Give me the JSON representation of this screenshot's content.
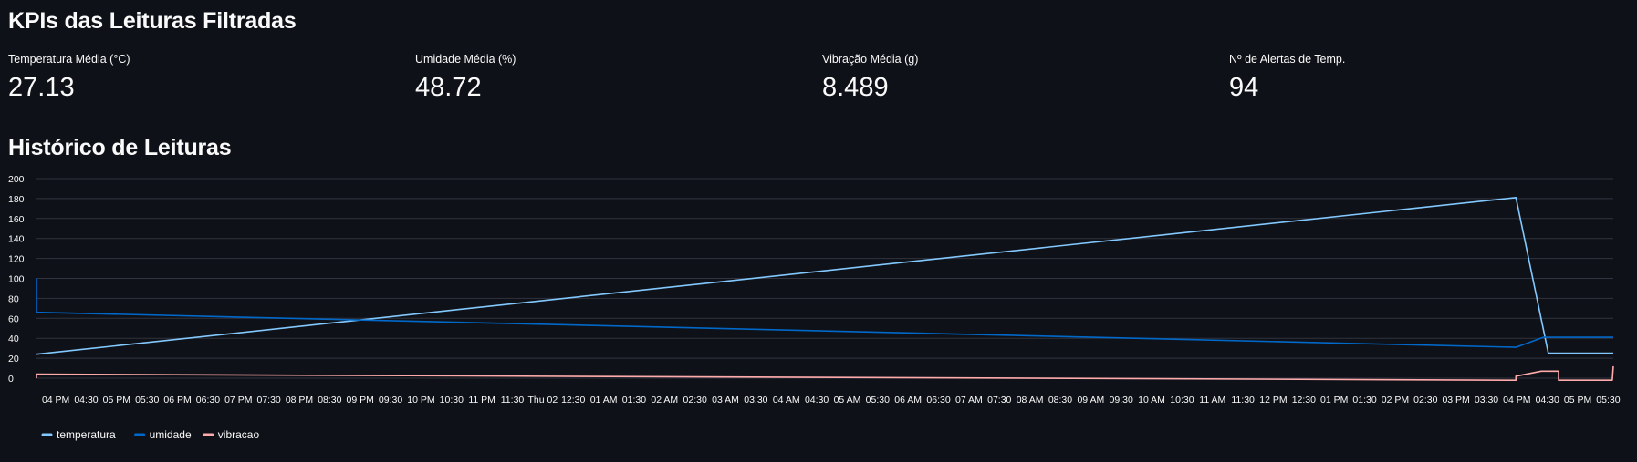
{
  "kpi_section": {
    "title": "KPIs das Leituras Filtradas",
    "metrics": [
      {
        "label": "Temperatura Média (°C)",
        "value": "27.13"
      },
      {
        "label": "Umidade Média (%)",
        "value": "48.72"
      },
      {
        "label": "Vibração Média (g)",
        "value": "8.489"
      },
      {
        "label": "Nº de Alertas de Temp.",
        "value": "94"
      }
    ]
  },
  "history_section": {
    "title": "Histórico de Leituras"
  },
  "chart_data": {
    "type": "line",
    "title": "",
    "xlabel": "",
    "ylabel": "",
    "ylim": [
      0,
      200
    ],
    "grid": true,
    "legend_position": "bottom-left",
    "y_ticks": [
      "0",
      "20",
      "40",
      "60",
      "80",
      "100",
      "120",
      "140",
      "160",
      "180",
      "200"
    ],
    "x_range": [
      "2025-10-01 15:41",
      "2025-10-02 17:35"
    ],
    "x_ticks": [
      {
        "t": "2025-10-01 16:00",
        "label": "04 PM"
      },
      {
        "t": "2025-10-01 16:30",
        "label": "04:30"
      },
      {
        "t": "2025-10-01 17:00",
        "label": "05 PM"
      },
      {
        "t": "2025-10-01 17:30",
        "label": "05:30"
      },
      {
        "t": "2025-10-01 18:00",
        "label": "06 PM"
      },
      {
        "t": "2025-10-01 18:30",
        "label": "06:30"
      },
      {
        "t": "2025-10-01 19:00",
        "label": "07 PM"
      },
      {
        "t": "2025-10-01 19:30",
        "label": "07:30"
      },
      {
        "t": "2025-10-01 20:00",
        "label": "08 PM"
      },
      {
        "t": "2025-10-01 20:30",
        "label": "08:30"
      },
      {
        "t": "2025-10-01 21:00",
        "label": "09 PM"
      },
      {
        "t": "2025-10-01 21:30",
        "label": "09:30"
      },
      {
        "t": "2025-10-01 22:00",
        "label": "10 PM"
      },
      {
        "t": "2025-10-01 22:30",
        "label": "10:30"
      },
      {
        "t": "2025-10-01 23:00",
        "label": "11 PM"
      },
      {
        "t": "2025-10-01 23:30",
        "label": "11:30"
      },
      {
        "t": "2025-10-02 00:00",
        "label": "Thu 02"
      },
      {
        "t": "2025-10-02 00:30",
        "label": "12:30"
      },
      {
        "t": "2025-10-02 01:00",
        "label": "01 AM"
      },
      {
        "t": "2025-10-02 01:30",
        "label": "01:30"
      },
      {
        "t": "2025-10-02 02:00",
        "label": "02 AM"
      },
      {
        "t": "2025-10-02 02:30",
        "label": "02:30"
      },
      {
        "t": "2025-10-02 03:00",
        "label": "03 AM"
      },
      {
        "t": "2025-10-02 03:30",
        "label": "03:30"
      },
      {
        "t": "2025-10-02 04:00",
        "label": "04 AM"
      },
      {
        "t": "2025-10-02 04:30",
        "label": "04:30"
      },
      {
        "t": "2025-10-02 05:00",
        "label": "05 AM"
      },
      {
        "t": "2025-10-02 05:30",
        "label": "05:30"
      },
      {
        "t": "2025-10-02 06:00",
        "label": "06 AM"
      },
      {
        "t": "2025-10-02 06:30",
        "label": "06:30"
      },
      {
        "t": "2025-10-02 07:00",
        "label": "07 AM"
      },
      {
        "t": "2025-10-02 07:30",
        "label": "07:30"
      },
      {
        "t": "2025-10-02 08:00",
        "label": "08 AM"
      },
      {
        "t": "2025-10-02 08:30",
        "label": "08:30"
      },
      {
        "t": "2025-10-02 09:00",
        "label": "09 AM"
      },
      {
        "t": "2025-10-02 09:30",
        "label": "09:30"
      },
      {
        "t": "2025-10-02 10:00",
        "label": "10 AM"
      },
      {
        "t": "2025-10-02 10:30",
        "label": "10:30"
      },
      {
        "t": "2025-10-02 11:00",
        "label": "11 AM"
      },
      {
        "t": "2025-10-02 11:30",
        "label": "11:30"
      },
      {
        "t": "2025-10-02 12:00",
        "label": "12 PM"
      },
      {
        "t": "2025-10-02 12:30",
        "label": "12:30"
      },
      {
        "t": "2025-10-02 13:00",
        "label": "01 PM"
      },
      {
        "t": "2025-10-02 13:30",
        "label": "01:30"
      },
      {
        "t": "2025-10-02 14:00",
        "label": "02 PM"
      },
      {
        "t": "2025-10-02 14:30",
        "label": "02:30"
      },
      {
        "t": "2025-10-02 15:00",
        "label": "03 PM"
      },
      {
        "t": "2025-10-02 15:30",
        "label": "03:30"
      },
      {
        "t": "2025-10-02 16:00",
        "label": "04 PM"
      },
      {
        "t": "2025-10-02 16:30",
        "label": "04:30"
      },
      {
        "t": "2025-10-02 17:00",
        "label": "05 PM"
      },
      {
        "t": "2025-10-02 17:30",
        "label": "05:30"
      }
    ],
    "series": [
      {
        "name": "temperatura",
        "color": "#83c9ff",
        "points": [
          {
            "t": "2025-10-01 15:41",
            "v": 24
          },
          {
            "t": "2025-10-02 15:59",
            "v": 181
          },
          {
            "t": "2025-10-02 16:31",
            "v": 25
          },
          {
            "t": "2025-10-02 17:35",
            "v": 25
          }
        ]
      },
      {
        "name": "umidade",
        "color": "#0068c9",
        "points": [
          {
            "t": "2025-10-01 15:41",
            "v": 100
          },
          {
            "t": "2025-10-01 15:41",
            "v": 66
          },
          {
            "t": "2025-10-02 15:59",
            "v": 31
          },
          {
            "t": "2025-10-02 16:26",
            "v": 41
          },
          {
            "t": "2025-10-02 17:35",
            "v": 41
          }
        ]
      },
      {
        "name": "vibracao",
        "color": "#ffabab",
        "points": [
          {
            "t": "2025-10-01 15:41",
            "v": 0
          },
          {
            "t": "2025-10-01 15:41",
            "v": 4
          },
          {
            "t": "2025-10-02 15:59",
            "v": -2
          },
          {
            "t": "2025-10-02 15:59",
            "v": 2
          },
          {
            "t": "2025-10-02 16:24",
            "v": 7
          },
          {
            "t": "2025-10-02 16:41",
            "v": 7
          },
          {
            "t": "2025-10-02 16:41",
            "v": -2
          },
          {
            "t": "2025-10-02 17:34",
            "v": -2
          },
          {
            "t": "2025-10-02 17:35",
            "v": 12
          }
        ]
      }
    ]
  }
}
